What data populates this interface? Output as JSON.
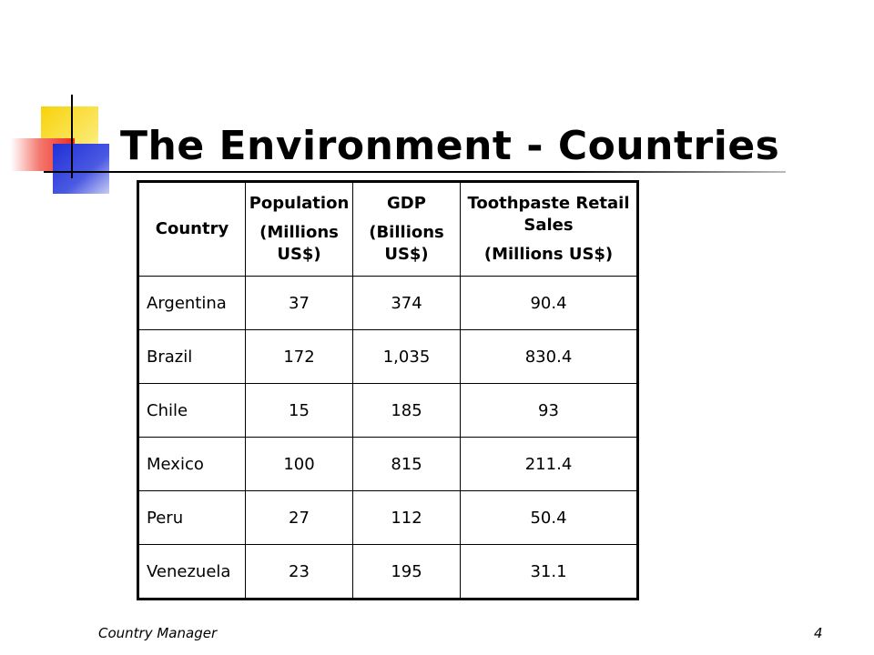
{
  "title": "The Environment - Countries",
  "table": {
    "headers": [
      [
        "Country"
      ],
      [
        "Population",
        "(Millions US$)"
      ],
      [
        "GDP",
        "(Billions US$)"
      ],
      [
        "Toothpaste Retail Sales",
        "(Millions US$)"
      ]
    ],
    "rows": [
      [
        "Argentina",
        "37",
        "374",
        "90.4"
      ],
      [
        "Brazil",
        "172",
        "1,035",
        "830.4"
      ],
      [
        "Chile",
        "15",
        "185",
        "93"
      ],
      [
        "Mexico",
        "100",
        "815",
        "211.4"
      ],
      [
        "Peru",
        "27",
        "112",
        "50.4"
      ],
      [
        "Venezuela",
        "23",
        "195",
        "31.1"
      ]
    ]
  },
  "footer": {
    "left": "Country Manager",
    "page_number": "4"
  },
  "colors": {
    "accent_yellow": "#f7d20a",
    "accent_red": "#ee2a1d",
    "accent_blue": "#1f2fd6"
  }
}
